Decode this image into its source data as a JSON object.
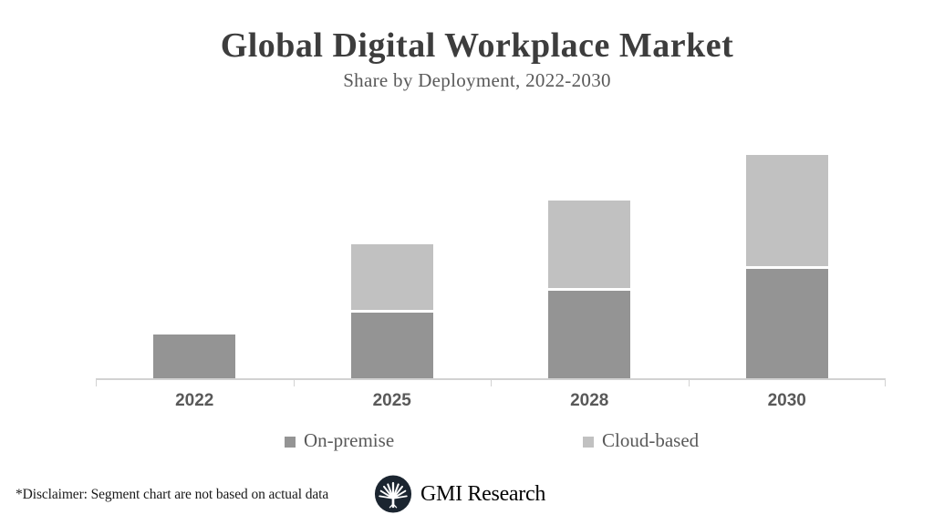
{
  "header": {
    "title": "Global Digital Workplace Market",
    "subtitle": "Share by Deployment, 2022-2030"
  },
  "chart_data": {
    "type": "bar",
    "stacked": true,
    "title": "Global Digital Workplace Market",
    "subtitle": "Share by Deployment, 2022-2030",
    "categories": [
      "2022",
      "2025",
      "2028",
      "2030"
    ],
    "series": [
      {
        "name": "On-premise",
        "values": [
          20,
          30,
          40,
          50
        ],
        "color": "#949494"
      },
      {
        "name": "Cloud-based",
        "values": [
          0,
          30,
          40,
          51
        ],
        "color": "#c1c1c1"
      }
    ],
    "xlabel": "",
    "ylabel": "",
    "ylim": [
      0,
      115
    ],
    "value_axis_visible": false,
    "gridlines": false,
    "data_labels": false,
    "legend_position": "bottom",
    "units": "relative share (illustrative, not actual data)"
  },
  "legend": {
    "items": [
      {
        "label": "On-premise",
        "color": "#949494"
      },
      {
        "label": "Cloud-based",
        "color": "#c1c1c1"
      }
    ]
  },
  "footer": {
    "disclaimer": "*Disclaimer:  Segment chart are not based on actual data",
    "brand": "GMI Research"
  },
  "colors": {
    "on_premise": "#949494",
    "cloud_based": "#c1c1c1",
    "axis_line": "#d2d2d2",
    "title_text": "#3d3d3d",
    "muted_text": "#595959",
    "logo_navy": "#1b2530",
    "background": "#ffffff"
  }
}
